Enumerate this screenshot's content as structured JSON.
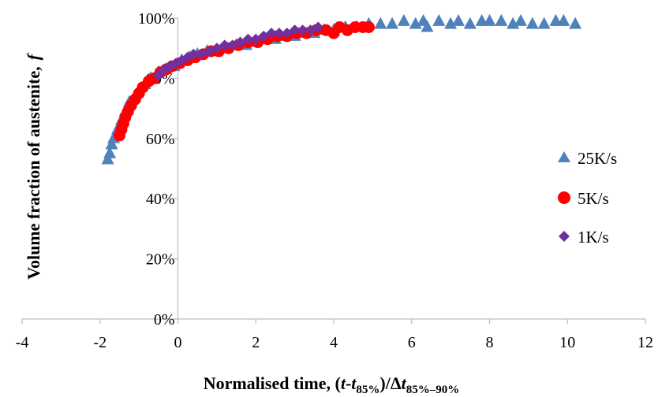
{
  "chart_data": {
    "type": "scatter",
    "title": "",
    "xlabel": {
      "prefix": "Normalised time, (",
      "t1": "t",
      "minus": "-",
      "t2": "t",
      "sub1": "85%",
      "mid": ")/",
      "delta": "Δ",
      "t3": "t",
      "sub2": "85%–90%"
    },
    "ylabel": {
      "main": "Volume fraction of austenite,",
      "symbol": "f"
    },
    "xlim": [
      -4,
      12
    ],
    "ylim": [
      0,
      100
    ],
    "xticks": [
      -4,
      -2,
      0,
      2,
      4,
      6,
      8,
      10,
      12
    ],
    "yticks": [
      0,
      20,
      40,
      60,
      80,
      100
    ],
    "ytick_suffix": "%",
    "grid": false,
    "legend_position": "right",
    "series": [
      {
        "name": "25K/s",
        "marker": "triangle",
        "color": "#4f81bd",
        "points": [
          [
            -1.8,
            53
          ],
          [
            -1.75,
            55
          ],
          [
            -1.7,
            58
          ],
          [
            -1.65,
            60
          ],
          [
            -1.55,
            63
          ],
          [
            -1.45,
            66
          ],
          [
            -1.35,
            69
          ],
          [
            -1.25,
            72
          ],
          [
            -1.1,
            74
          ],
          [
            -1.0,
            76
          ],
          [
            -0.85,
            78
          ],
          [
            -0.7,
            80
          ],
          [
            -0.5,
            82
          ],
          [
            -0.3,
            83
          ],
          [
            -0.1,
            84
          ],
          [
            0.1,
            86
          ],
          [
            0.3,
            87
          ],
          [
            0.5,
            88
          ],
          [
            0.75,
            89
          ],
          [
            1.0,
            89
          ],
          [
            1.25,
            90
          ],
          [
            1.5,
            91
          ],
          [
            1.75,
            91
          ],
          [
            2.0,
            92
          ],
          [
            2.25,
            93
          ],
          [
            2.5,
            93
          ],
          [
            2.75,
            94
          ],
          [
            3.0,
            94
          ],
          [
            3.25,
            95
          ],
          [
            3.5,
            95
          ],
          [
            3.75,
            96
          ],
          [
            4.0,
            96
          ],
          [
            4.3,
            97
          ],
          [
            4.6,
            97
          ],
          [
            4.9,
            98
          ],
          [
            5.2,
            98
          ],
          [
            5.5,
            98
          ],
          [
            5.8,
            99
          ],
          [
            6.1,
            98
          ],
          [
            6.3,
            99
          ],
          [
            6.4,
            97
          ],
          [
            6.7,
            99
          ],
          [
            7.0,
            98
          ],
          [
            7.2,
            99
          ],
          [
            7.5,
            98
          ],
          [
            7.8,
            99
          ],
          [
            8.0,
            99
          ],
          [
            8.3,
            99
          ],
          [
            8.6,
            98
          ],
          [
            8.8,
            99
          ],
          [
            9.1,
            98
          ],
          [
            9.4,
            98
          ],
          [
            9.7,
            99
          ],
          [
            9.9,
            99
          ],
          [
            10.2,
            98
          ]
        ]
      },
      {
        "name": "5K/s",
        "marker": "circle",
        "color": "#ff0000",
        "points": [
          [
            -1.5,
            61
          ],
          [
            -1.45,
            63
          ],
          [
            -1.4,
            65
          ],
          [
            -1.35,
            67
          ],
          [
            -1.28,
            69
          ],
          [
            -1.2,
            71
          ],
          [
            -1.1,
            73
          ],
          [
            -1.0,
            75
          ],
          [
            -0.9,
            77
          ],
          [
            -0.75,
            79
          ],
          [
            -0.6,
            80
          ],
          [
            -0.45,
            82
          ],
          [
            -0.3,
            83
          ],
          [
            -0.15,
            84
          ],
          [
            0.05,
            85
          ],
          [
            0.25,
            86
          ],
          [
            0.45,
            87
          ],
          [
            0.65,
            88
          ],
          [
            0.85,
            89
          ],
          [
            1.05,
            89
          ],
          [
            1.3,
            90
          ],
          [
            1.55,
            91
          ],
          [
            1.8,
            92
          ],
          [
            2.05,
            92
          ],
          [
            2.3,
            93
          ],
          [
            2.55,
            94
          ],
          [
            2.8,
            94
          ],
          [
            3.05,
            95
          ],
          [
            3.3,
            95
          ],
          [
            3.55,
            96
          ],
          [
            3.8,
            96
          ],
          [
            4.0,
            95
          ],
          [
            4.15,
            97
          ],
          [
            4.35,
            96
          ],
          [
            4.55,
            97
          ],
          [
            4.75,
            97
          ],
          [
            4.9,
            97
          ]
        ]
      },
      {
        "name": "1K/s",
        "marker": "diamond",
        "color": "#7030a0",
        "points": [
          [
            -0.5,
            81
          ],
          [
            -0.35,
            83
          ],
          [
            -0.2,
            84
          ],
          [
            -0.05,
            85
          ],
          [
            0.1,
            86
          ],
          [
            0.25,
            87
          ],
          [
            0.4,
            88
          ],
          [
            0.6,
            88
          ],
          [
            0.8,
            89
          ],
          [
            1.0,
            90
          ],
          [
            1.2,
            91
          ],
          [
            1.4,
            91
          ],
          [
            1.6,
            92
          ],
          [
            1.8,
            93
          ],
          [
            2.0,
            93
          ],
          [
            2.2,
            94
          ],
          [
            2.4,
            95
          ],
          [
            2.6,
            95
          ],
          [
            2.8,
            95
          ],
          [
            3.0,
            96
          ],
          [
            3.2,
            96
          ],
          [
            3.4,
            96
          ],
          [
            3.6,
            97
          ]
        ]
      }
    ]
  }
}
